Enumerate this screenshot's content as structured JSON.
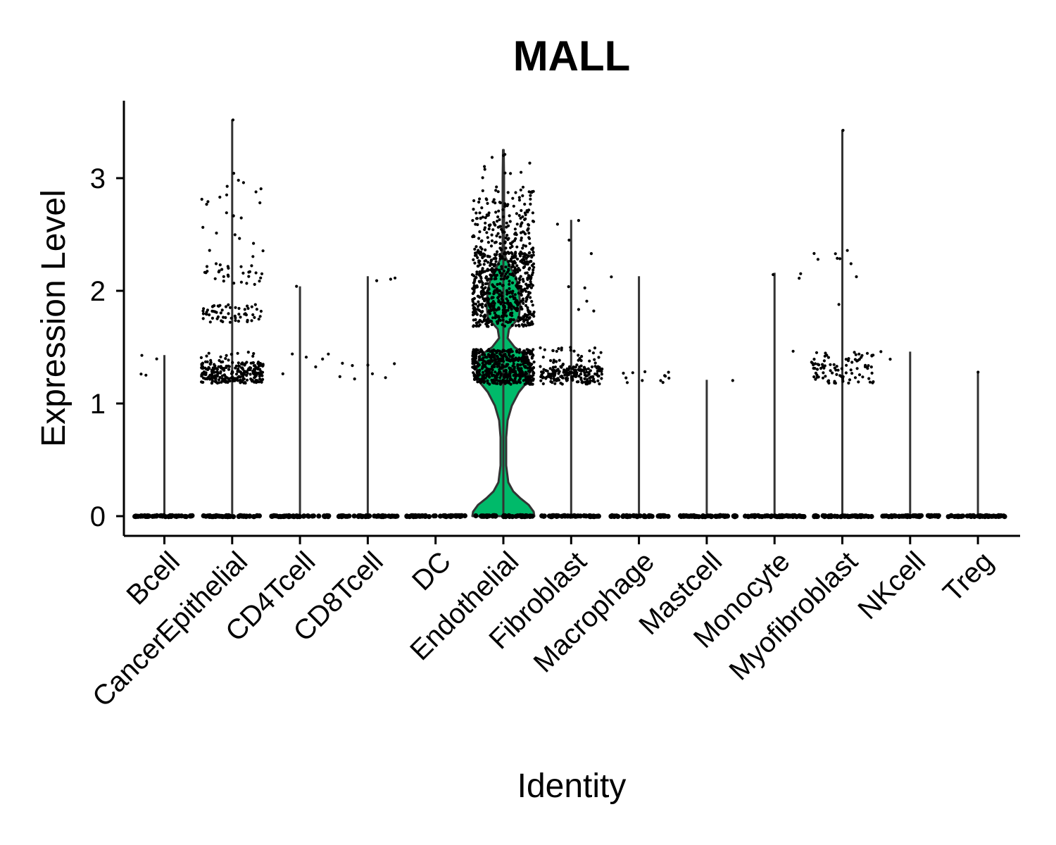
{
  "chart_data": {
    "type": "violin",
    "title": "MALL",
    "xlabel": "Identity",
    "ylabel": "Expression Level",
    "ylim": [
      -0.17,
      3.7
    ],
    "yticks": [
      0,
      1,
      2,
      3
    ],
    "categories": [
      "Bcell",
      "CancerEpithelial",
      "CD4Tcell",
      "CD8Tcell",
      "DC",
      "Endothelial",
      "Fibroblast",
      "Macrophage",
      "Mastcell",
      "Monocyte",
      "Myofibroblast",
      "NKcell",
      "Treg"
    ],
    "max_values": [
      1.43,
      3.52,
      2.04,
      2.13,
      0.0,
      3.25,
      2.63,
      2.13,
      1.21,
      2.16,
      3.43,
      1.46,
      1.28
    ],
    "highlight": {
      "category": "Endothelial",
      "color": "#00BA6A"
    },
    "point_color": "#000000",
    "grid": false,
    "legend": "none"
  }
}
